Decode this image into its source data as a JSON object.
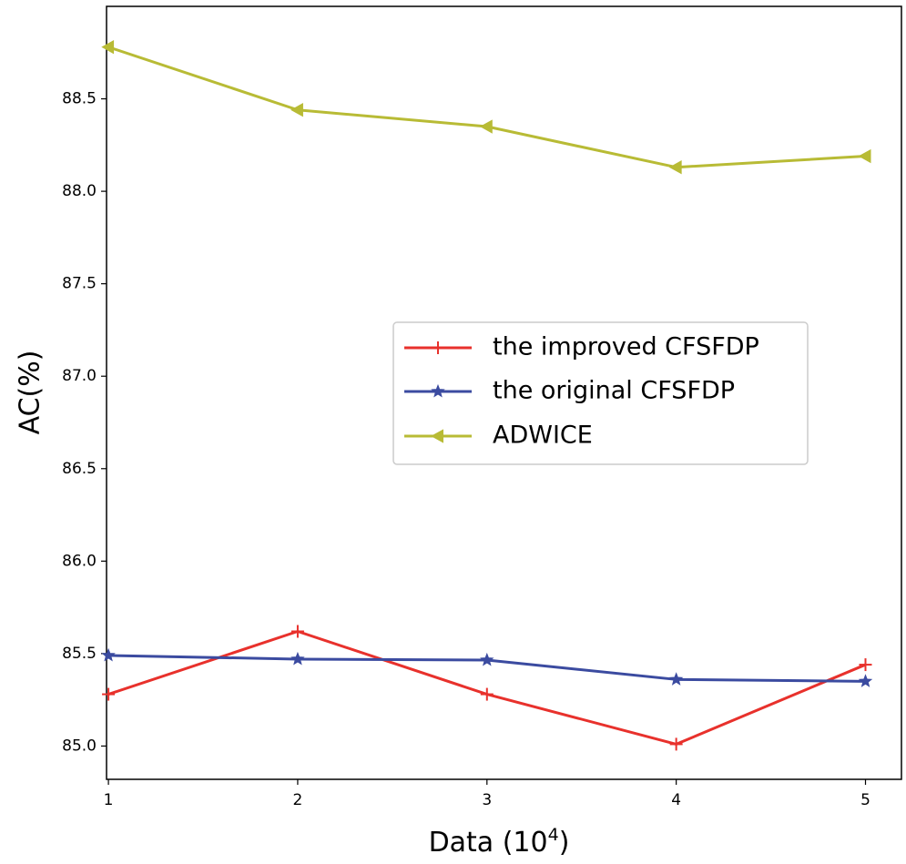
{
  "chart_data": {
    "type": "line",
    "xlabel": "Data (10",
    "xlabel_sup": "4",
    "xlabel_close": ")",
    "ylabel": "AC(%)",
    "x": [
      1,
      2,
      3,
      4,
      5
    ],
    "xlim": [
      0.99,
      5.19
    ],
    "ylim": [
      84.82,
      89.0
    ],
    "yticks": [
      85.0,
      85.5,
      86.0,
      86.5,
      87.0,
      87.5,
      88.0,
      88.5
    ],
    "ytick_labels": [
      "85.0",
      "85.5",
      "86.0",
      "86.5",
      "87.0",
      "87.5",
      "88.0",
      "88.5"
    ],
    "xtick_labels": [
      "1",
      "2",
      "3",
      "4",
      "5"
    ],
    "grid": false,
    "legend_placement": "center-right",
    "series": [
      {
        "name": "the improved CFSFDP",
        "values": [
          85.28,
          85.62,
          85.28,
          85.01,
          85.44
        ],
        "color": "#e8312c",
        "marker": "plus"
      },
      {
        "name": "the original CFSFDP",
        "values": [
          85.49,
          85.47,
          85.465,
          85.36,
          85.35
        ],
        "color": "#3b4ba0",
        "marker": "star"
      },
      {
        "name": "ADWICE",
        "values": [
          88.78,
          88.44,
          88.35,
          88.13,
          88.19
        ],
        "color": "#b8bb35",
        "marker": "triangle-left"
      }
    ]
  }
}
